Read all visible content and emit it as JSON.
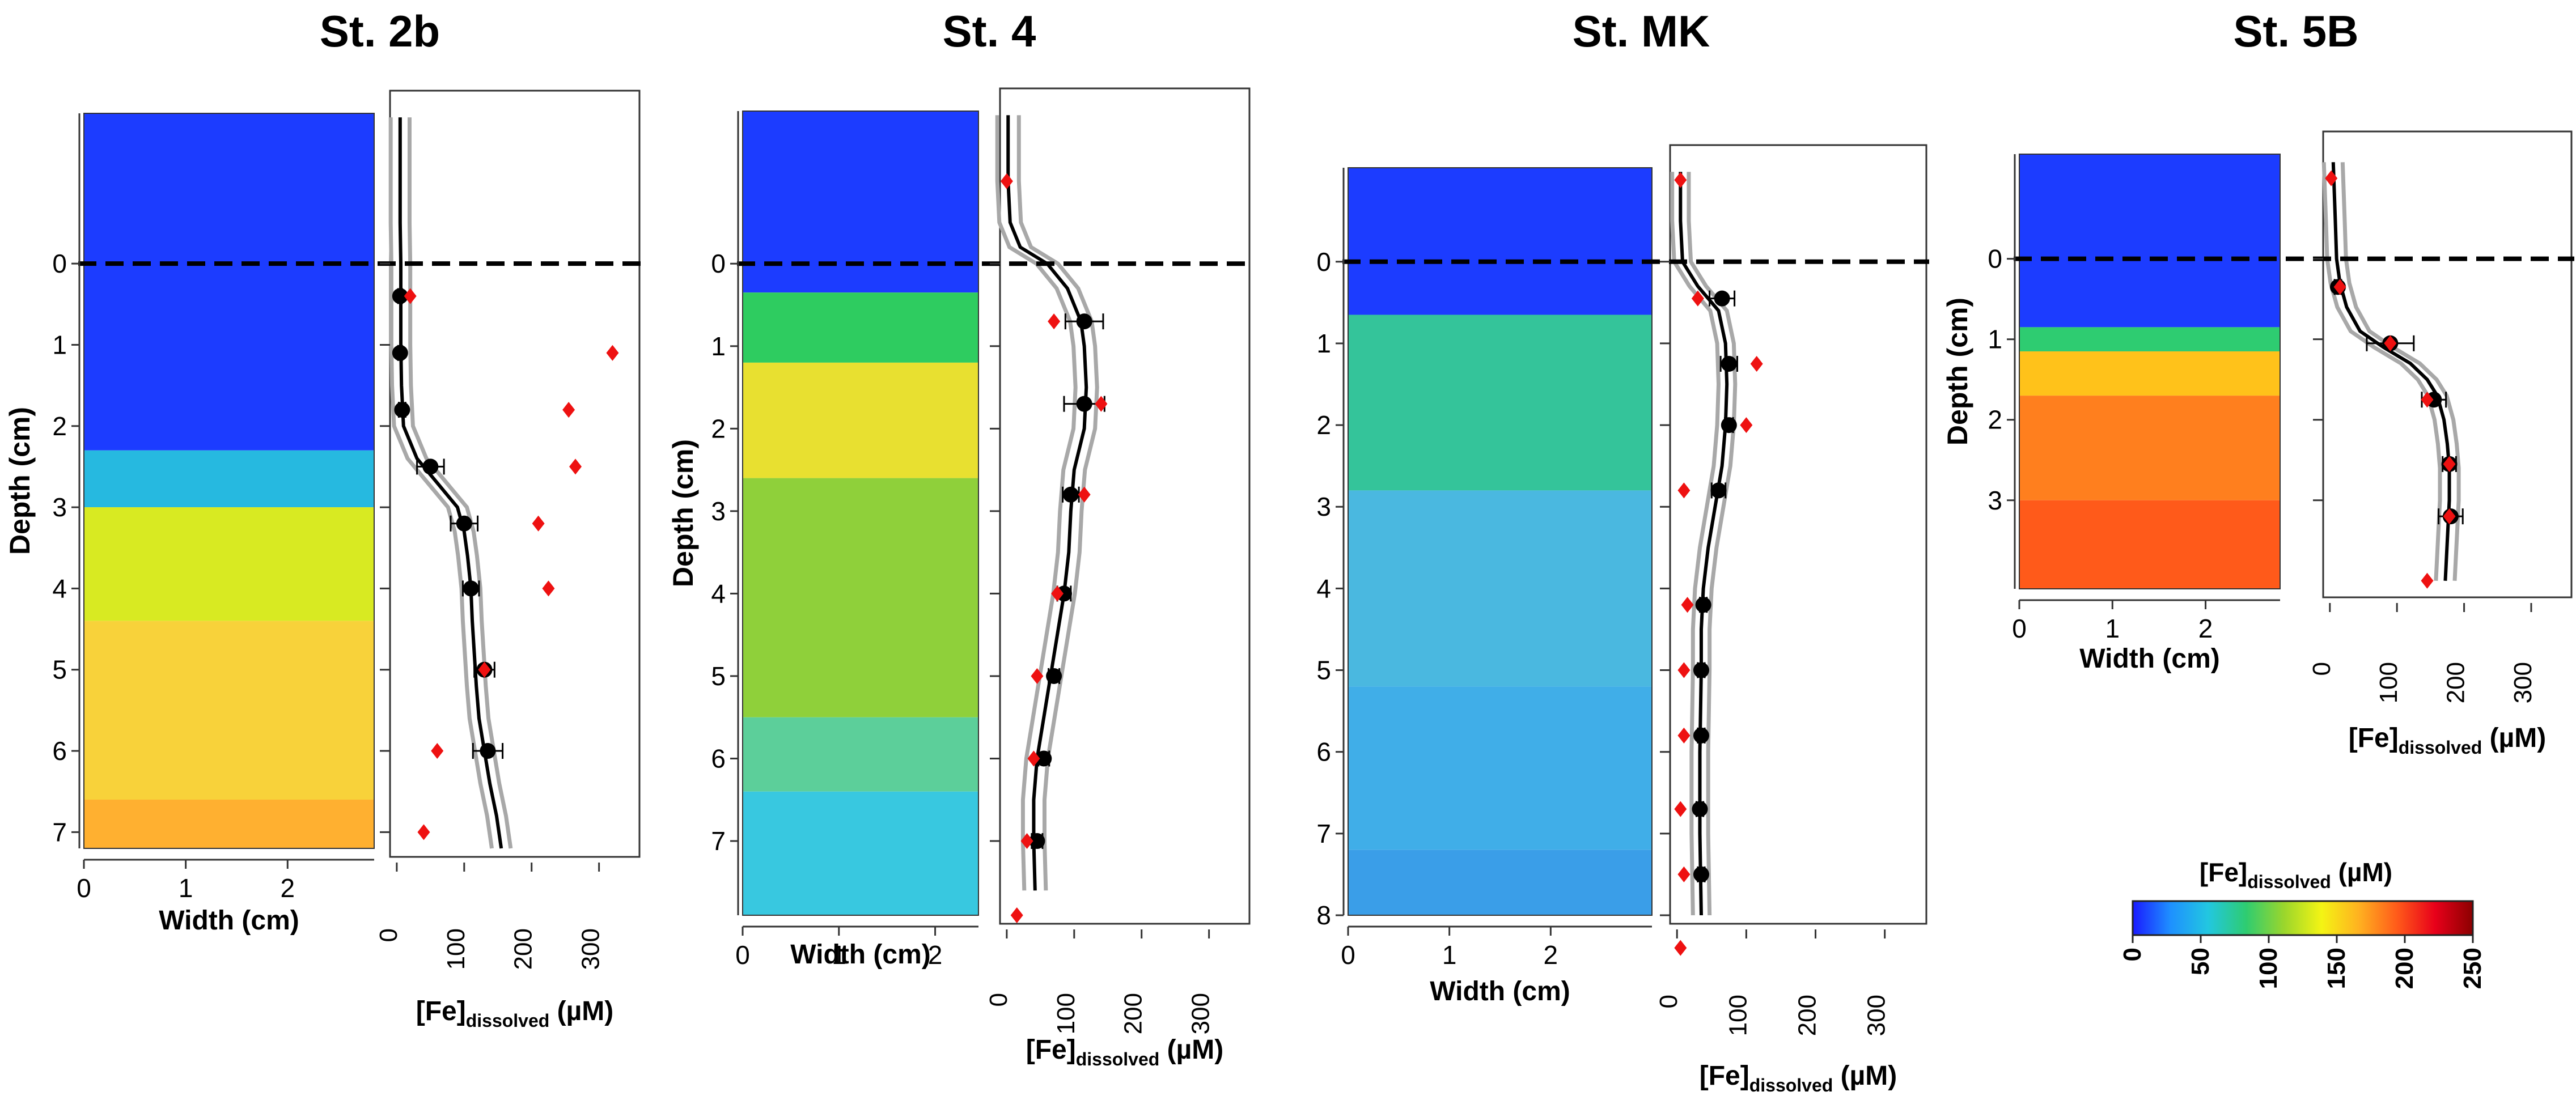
{
  "figure": {
    "colorbar": {
      "title_main": "[Fe]",
      "title_sub": "dissolved",
      "title_unit": " (µM)",
      "ticks": [
        "0",
        "50",
        "100",
        "150",
        "200",
        "250"
      ],
      "range": [
        0,
        250
      ],
      "colors": [
        "#1a1aff",
        "#1e90ff",
        "#22c7e0",
        "#2ecc71",
        "#9ad62c",
        "#f4f414",
        "#ffb020",
        "#ff5a1a",
        "#e8001a",
        "#8b0000"
      ]
    }
  },
  "chart_data": [
    {
      "type": "scatter",
      "panel": "St. 2b",
      "title": "St. 2b",
      "ylabel": "Depth (cm)",
      "image_xlabel": "Width (cm)",
      "image_xticks": [
        "0",
        "1",
        "2"
      ],
      "image_width_cm": 2.85,
      "depth_ticks": [
        "0",
        "1",
        "2",
        "3",
        "4",
        "5",
        "6",
        "7"
      ],
      "depth_range": [
        -1.85,
        7.2
      ],
      "xlabel_main": "[Fe]",
      "xlabel_sub": "dissolved",
      "xlabel_unit": " (µM)",
      "xticks": [
        "0",
        "100",
        "200",
        "300"
      ],
      "xlim": [
        -10,
        360
      ],
      "image_zones": [
        {
          "top": -1.85,
          "color": "#1c3cff"
        },
        {
          "top": 2.3,
          "color": "#26b9e0"
        },
        {
          "top": 3.0,
          "color": "#d8ea22"
        },
        {
          "top": 4.4,
          "color": "#f8d23a"
        },
        {
          "top": 6.6,
          "color": "#ffb030"
        }
      ],
      "profile": {
        "depth": [
          -1.8,
          -0.5,
          0.0,
          0.5,
          1.0,
          1.5,
          2.0,
          2.4,
          2.7,
          3.0,
          3.3,
          3.6,
          4.0,
          4.4,
          4.8,
          5.2,
          5.6,
          6.0,
          6.4,
          6.8,
          7.2
        ],
        "value": [
          5,
          5,
          6,
          6,
          6,
          7,
          10,
          30,
          60,
          90,
          100,
          105,
          110,
          112,
          115,
          118,
          122,
          130,
          138,
          148,
          155
        ]
      },
      "profile_band": 14,
      "means": {
        "depth": [
          0.4,
          1.1,
          1.8,
          2.5,
          3.2,
          4.0,
          5.0,
          6.0
        ],
        "value": [
          5,
          5,
          8,
          50,
          100,
          110,
          130,
          135
        ],
        "err": [
          3,
          3,
          5,
          20,
          20,
          12,
          15,
          22
        ]
      },
      "discrete": {
        "depth": [
          0.4,
          1.1,
          1.8,
          2.5,
          3.2,
          4.0,
          5.0,
          6.0,
          7.0
        ],
        "value": [
          20,
          320,
          255,
          265,
          210,
          225,
          130,
          60,
          40
        ]
      }
    },
    {
      "type": "scatter",
      "panel": "St. 4",
      "title": "St. 4",
      "ylabel": "Depth (cm)",
      "image_xlabel": "Width (cm)",
      "image_xticks": [
        "0",
        "1",
        "2"
      ],
      "image_width_cm": 2.45,
      "depth_ticks": [
        "0",
        "1",
        "2",
        "3",
        "4",
        "5",
        "6",
        "7"
      ],
      "depth_range": [
        -1.85,
        7.9
      ],
      "xlabel_main": "[Fe]",
      "xlabel_sub": "dissolved",
      "xlabel_unit": " (µM)",
      "xticks": [
        "0",
        "100",
        "200",
        "300"
      ],
      "xlim": [
        -10,
        360
      ],
      "image_zones": [
        {
          "top": -1.85,
          "color": "#1c3cff"
        },
        {
          "top": 0.35,
          "color": "#2ecc60"
        },
        {
          "top": 1.2,
          "color": "#e8e030"
        },
        {
          "top": 2.6,
          "color": "#8fd03a"
        },
        {
          "top": 5.5,
          "color": "#5ccf9a"
        },
        {
          "top": 6.4,
          "color": "#38c8e0"
        }
      ],
      "profile": {
        "depth": [
          -1.8,
          -1.0,
          -0.5,
          -0.2,
          0.0,
          0.3,
          0.7,
          1.0,
          1.5,
          2.0,
          2.5,
          3.0,
          3.5,
          4.0,
          4.5,
          5.0,
          5.5,
          6.0,
          6.5,
          7.0,
          7.6
        ],
        "value": [
          2,
          2,
          5,
          20,
          60,
          90,
          110,
          115,
          118,
          115,
          100,
          95,
          92,
          85,
          75,
          65,
          55,
          45,
          40,
          40,
          42
        ]
      },
      "profile_band": 16,
      "means": {
        "depth": [
          0.7,
          1.7,
          2.8,
          4.0,
          5.0,
          6.0,
          7.0
        ],
        "value": [
          115,
          115,
          95,
          85,
          70,
          55,
          45
        ],
        "err": [
          28,
          30,
          12,
          10,
          8,
          8,
          8
        ]
      },
      "discrete": {
        "depth": [
          -1.0,
          0.7,
          1.7,
          2.8,
          4.0,
          5.0,
          6.0,
          7.0,
          7.9
        ],
        "value": [
          0,
          70,
          140,
          115,
          75,
          45,
          40,
          30,
          15
        ]
      }
    },
    {
      "type": "scatter",
      "panel": "St. MK",
      "title": "St. MK",
      "ylabel": "",
      "image_xlabel": "Width (cm)",
      "image_xticks": [
        "0",
        "1",
        "2"
      ],
      "image_width_cm": 3.0,
      "depth_ticks": [
        "0",
        "1",
        "2",
        "3",
        "4",
        "5",
        "6",
        "7",
        "8"
      ],
      "depth_range": [
        -1.15,
        8.0
      ],
      "xlabel_main": "[Fe]",
      "xlabel_sub": "dissolved",
      "xlabel_unit": " (µM)",
      "xticks": [
        "0",
        "100",
        "200",
        "300"
      ],
      "xlim": [
        -10,
        360
      ],
      "image_zones": [
        {
          "top": -1.15,
          "color": "#1c3cff"
        },
        {
          "top": 0.65,
          "color": "#34c49a"
        },
        {
          "top": 2.8,
          "color": "#4ab8e0"
        },
        {
          "top": 5.2,
          "color": "#40aee8"
        },
        {
          "top": 7.2,
          "color": "#3a9ee8"
        }
      ],
      "profile": {
        "depth": [
          -1.1,
          -0.5,
          0.0,
          0.3,
          0.6,
          1.0,
          1.5,
          2.0,
          2.5,
          3.0,
          3.5,
          4.0,
          4.5,
          5.0,
          5.5,
          6.0,
          6.5,
          7.0,
          7.5,
          8.0
        ],
        "value": [
          5,
          5,
          8,
          30,
          60,
          70,
          72,
          70,
          65,
          55,
          45,
          38,
          35,
          35,
          34,
          33,
          33,
          33,
          34,
          35
        ],
        "value_alt": []
      },
      "profile_band": 12,
      "means": {
        "depth": [
          0.45,
          1.25,
          2.0,
          2.8,
          4.2,
          5.0,
          5.8,
          6.7,
          7.5
        ],
        "value": [
          65,
          75,
          75,
          60,
          38,
          35,
          35,
          33,
          35
        ],
        "err": [
          18,
          12,
          6,
          10,
          5,
          5,
          5,
          5,
          5
        ]
      },
      "discrete": {
        "depth": [
          -1.0,
          0.45,
          1.25,
          2.0,
          2.8,
          4.2,
          5.0,
          5.8,
          6.7,
          7.5,
          8.4
        ],
        "value": [
          5,
          30,
          115,
          100,
          10,
          15,
          10,
          10,
          5,
          10,
          5
        ]
      }
    },
    {
      "type": "scatter",
      "panel": "St. 5B",
      "title": "St. 5B",
      "ylabel": "Depth (cm)",
      "image_xlabel": "Width (cm)",
      "image_xticks": [
        "0",
        "1",
        "2"
      ],
      "image_width_cm": 2.8,
      "depth_ticks": [
        "0",
        "1",
        "2",
        "3"
      ],
      "depth_range": [
        -1.3,
        4.1
      ],
      "xlabel_main": "[Fe]",
      "xlabel_sub": "dissolved",
      "xlabel_unit": " (µM)",
      "xticks": [
        "0",
        "100",
        "200",
        "300"
      ],
      "xlim": [
        -10,
        360
      ],
      "image_zones": [
        {
          "top": -1.3,
          "color": "#1c3cff"
        },
        {
          "top": 0.85,
          "color": "#2ecc71"
        },
        {
          "top": 1.15,
          "color": "#ffc21a"
        },
        {
          "top": 1.7,
          "color": "#ff7f1e"
        },
        {
          "top": 3.0,
          "color": "#ff5a1a"
        }
      ],
      "profile": {
        "depth": [
          -1.2,
          -0.5,
          0.0,
          0.3,
          0.6,
          0.9,
          1.1,
          1.3,
          1.5,
          1.7,
          2.0,
          2.3,
          2.6,
          3.0,
          3.5,
          4.0
        ],
        "value": [
          5,
          8,
          10,
          15,
          25,
          45,
          80,
          120,
          145,
          160,
          170,
          175,
          178,
          178,
          175,
          172
        ]
      },
      "profile_band": 14,
      "means": {
        "depth": [
          0.35,
          1.05,
          1.75,
          2.55,
          3.2
        ],
        "value": [
          12,
          90,
          155,
          178,
          180
        ],
        "err": [
          5,
          35,
          18,
          10,
          18
        ]
      },
      "discrete": {
        "depth": [
          -1.0,
          0.35,
          1.05,
          1.75,
          2.55,
          3.2,
          4.0
        ],
        "value": [
          2,
          15,
          90,
          145,
          178,
          178,
          145
        ]
      }
    }
  ]
}
